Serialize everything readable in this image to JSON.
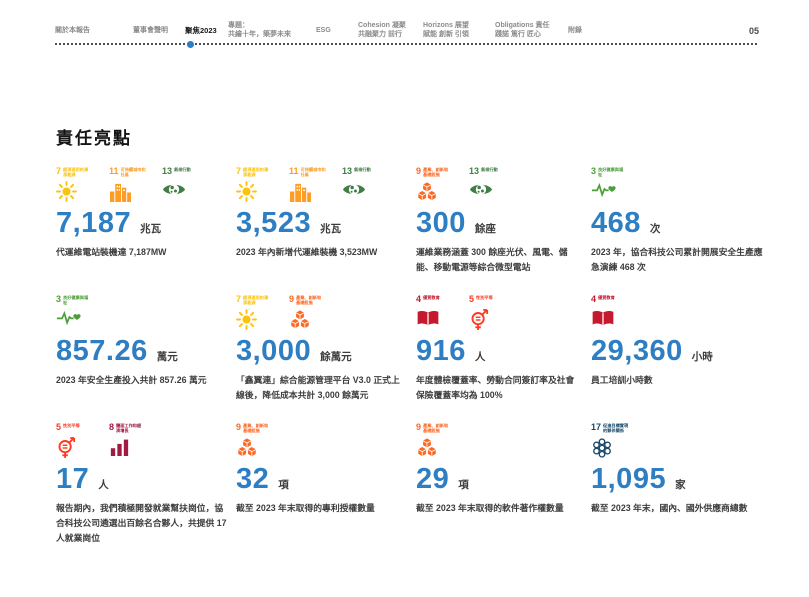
{
  "title": "責任亮點",
  "page_number": "05",
  "colors": {
    "value_blue": "#2E7EC3",
    "text_dark": "#3d3d3d",
    "nav_indicator": "#2E7EC3"
  },
  "nav": {
    "items": [
      {
        "id": "about-report",
        "lines": [
          "關於本報告"
        ]
      },
      {
        "id": "board-statement",
        "lines": [
          "董事會聲明"
        ]
      },
      {
        "id": "focus-2023",
        "lines": [
          "聚焦2023"
        ],
        "active": true
      },
      {
        "id": "feature-topic",
        "lines": [
          "專題：",
          "共繪十年，築夢未來"
        ]
      },
      {
        "id": "esg",
        "lines": [
          "ESG"
        ]
      },
      {
        "id": "cohesion",
        "lines": [
          "Cohesion 凝聚",
          "共融聚力 前行"
        ]
      },
      {
        "id": "horizons",
        "lines": [
          "Horizons 展望",
          "賦能 創新 引領"
        ]
      },
      {
        "id": "obligations",
        "lines": [
          "Obligations 責任",
          "踐諾 篤行 匠心"
        ]
      },
      {
        "id": "appendix",
        "lines": [
          "附錄"
        ]
      }
    ]
  },
  "sdg": {
    "3": {
      "label": "良好健康與福祉",
      "color": "#4C9F38",
      "glyph": "health"
    },
    "4": {
      "label": "優質教育",
      "color": "#C5192D",
      "glyph": "education"
    },
    "5": {
      "label": "性別平等",
      "color": "#FF3A21",
      "glyph": "gender"
    },
    "7": {
      "label": "經濟適用的清潔能源",
      "color": "#FCC30B",
      "glyph": "sun"
    },
    "8": {
      "label": "體面工作和經濟增長",
      "color": "#A21942",
      "glyph": "growth"
    },
    "9": {
      "label": "產業、創新和基礎設施",
      "color": "#FD6925",
      "glyph": "industry"
    },
    "11": {
      "label": "可持續城市和社區",
      "color": "#FD9D24",
      "glyph": "city"
    },
    "13": {
      "label": "氣候行動",
      "color": "#3F7E44",
      "glyph": "climate"
    },
    "17": {
      "label": "促進目標實現的夥伴關係",
      "color": "#19486A",
      "glyph": "partnership"
    }
  },
  "stats": [
    {
      "sdgs": [
        "7",
        "11",
        "13"
      ],
      "value": "7,187",
      "unit": "兆瓦",
      "desc": "代運維電站裝機達 7,187MW"
    },
    {
      "sdgs": [
        "7",
        "11",
        "13"
      ],
      "value": "3,523",
      "unit": "兆瓦",
      "desc": "2023 年內新增代運維裝機 3,523MW"
    },
    {
      "sdgs": [
        "9",
        "13"
      ],
      "value": "300",
      "unit": "餘座",
      "desc": "運維業務涵蓋 300 餘座光伏、風電、儲能、移動電源等綜合微型電站"
    },
    {
      "sdgs": [
        "3"
      ],
      "value": "468",
      "unit": "次",
      "desc": "2023 年，協合科技公司累計開展安全生產應急演練 468 次"
    },
    {
      "sdgs": [
        "3"
      ],
      "value": "857.26",
      "unit": "萬元",
      "desc": "2023 年安全生產投入共計 857.26 萬元"
    },
    {
      "sdgs": [
        "7",
        "9"
      ],
      "value": "3,000",
      "unit": "餘萬元",
      "desc": "「鑫翼連」綜合能源管理平台 V3.0 正式上線後，降低成本共計 3,000 餘萬元"
    },
    {
      "sdgs": [
        "4",
        "5"
      ],
      "value": "916",
      "unit": "人",
      "desc": "年度體檢覆蓋率、勞動合同簽訂率及社會保險覆蓋率均為 100%"
    },
    {
      "sdgs": [
        "4"
      ],
      "value": "29,360",
      "unit": "小時",
      "desc": "員工培訓小時數"
    },
    {
      "sdgs": [
        "5",
        "8"
      ],
      "value": "17",
      "unit": "人",
      "desc": "報告期內，我們積極開發就業幫扶崗位，協合科技公司遴選出百餘名合夥人，共提供 17 人就業崗位"
    },
    {
      "sdgs": [
        "9"
      ],
      "value": "32",
      "unit": "項",
      "desc": "截至 2023 年末取得的專利授權數量"
    },
    {
      "sdgs": [
        "9"
      ],
      "value": "29",
      "unit": "項",
      "desc": "截至 2023 年末取得的軟件著作權數量"
    },
    {
      "sdgs": [
        "17"
      ],
      "value": "1,095",
      "unit": "家",
      "desc": "截至 2023 年末，國內、國外供應商總數"
    }
  ]
}
